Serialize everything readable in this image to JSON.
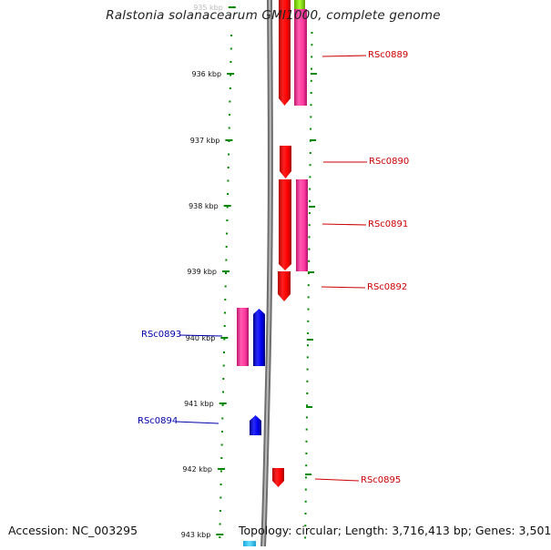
{
  "title": "Ralstonia solanacearum GMI1000, complete genome",
  "footer": {
    "accession": "Accession: NC_003295",
    "summary": "Topology: circular; Length: 3,716,413 bp; Genes: 3,501"
  },
  "ruler": {
    "ticks": [
      "935 kbp",
      "936 kbp",
      "937 kbp",
      "938 kbp",
      "939 kbp",
      "940 kbp",
      "941 kbp",
      "942 kbp",
      "943 kbp"
    ]
  },
  "genes": [
    {
      "label": "RSc0889",
      "strand": "+",
      "color": "#cc0000"
    },
    {
      "label": "RSc0890",
      "strand": "+",
      "color": "#cc0000"
    },
    {
      "label": "RSc0891",
      "strand": "+",
      "color": "#cc0000"
    },
    {
      "label": "RSc0892",
      "strand": "+",
      "color": "#cc0000"
    },
    {
      "label": "RSc0893",
      "strand": "-",
      "color": "#0000aa"
    },
    {
      "label": "RSc0894",
      "strand": "-",
      "color": "#0000aa"
    },
    {
      "label": "RSc0895",
      "strand": "+",
      "color": "#cc0000"
    }
  ],
  "colors": {
    "gene_red": "#ff0000",
    "gene_magenta": "#ff3aa0",
    "gene_blue": "#0000ee",
    "gene_green": "#7fe000",
    "gene_cyan": "#33ccff",
    "ruler_green": "#008800",
    "backbone": "#888888"
  }
}
